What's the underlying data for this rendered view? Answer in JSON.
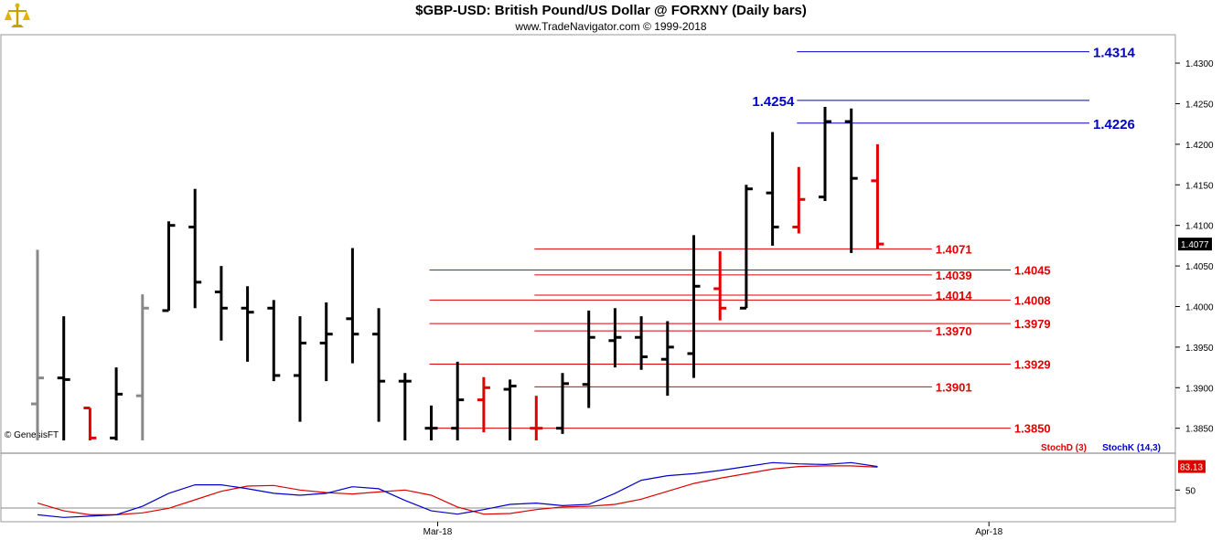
{
  "header": {
    "title": "$GBP-USD:  British Pound/US Dollar @ FORXNY  (Daily bars)",
    "subtitle": "www.TradeNavigator.com © 1999-2018"
  },
  "watermark": "© GenesisFT",
  "colors": {
    "up": "#000000",
    "down": "#e00000",
    "gray": "#888888",
    "support": "#dd0000",
    "resistance": "#0000cc",
    "stochD": "#dd0000",
    "stochK": "#0000cc"
  },
  "chart_data": [
    {
      "type": "ohlc",
      "ylim": [
        1.3835,
        1.4335
      ],
      "yticks": [
        "1.3850",
        "1.3900",
        "1.3950",
        "1.4000",
        "1.4050",
        "1.4100",
        "1.4150",
        "1.4200",
        "1.4250",
        "1.4300"
      ],
      "last_price": "1.4077",
      "xticks": [
        {
          "index": 15,
          "label": "Mar-18"
        },
        {
          "index": 36,
          "label": "Apr-18"
        }
      ],
      "bars": [
        {
          "o": 1.388,
          "h": 1.407,
          "l": 1.3835,
          "c": 1.3912,
          "color": "gray"
        },
        {
          "o": 1.3912,
          "h": 1.3988,
          "l": 1.3835,
          "c": 1.391,
          "color": "black"
        },
        {
          "o": 1.3875,
          "h": 1.3875,
          "l": 1.3835,
          "c": 1.3838,
          "color": "red"
        },
        {
          "o": 1.3838,
          "h": 1.3925,
          "l": 1.3835,
          "c": 1.3892,
          "color": "black"
        },
        {
          "o": 1.389,
          "h": 1.4015,
          "l": 1.3835,
          "c": 1.3998,
          "color": "gray"
        },
        {
          "o": 1.3995,
          "h": 1.4105,
          "l": 1.3995,
          "c": 1.41,
          "color": "black"
        },
        {
          "o": 1.4098,
          "h": 1.4145,
          "l": 1.3998,
          "c": 1.403,
          "color": "black"
        },
        {
          "o": 1.4018,
          "h": 1.405,
          "l": 1.3958,
          "c": 1.3998,
          "color": "black"
        },
        {
          "o": 1.3998,
          "h": 1.4025,
          "l": 1.3932,
          "c": 1.3993,
          "color": "black"
        },
        {
          "o": 1.3998,
          "h": 1.4008,
          "l": 1.3908,
          "c": 1.3915,
          "color": "black"
        },
        {
          "o": 1.3915,
          "h": 1.3988,
          "l": 1.3858,
          "c": 1.3955,
          "color": "black"
        },
        {
          "o": 1.3955,
          "h": 1.4005,
          "l": 1.3908,
          "c": 1.3966,
          "color": "black"
        },
        {
          "o": 1.3985,
          "h": 1.4072,
          "l": 1.393,
          "c": 1.3966,
          "color": "black"
        },
        {
          "o": 1.3966,
          "h": 1.3998,
          "l": 1.3858,
          "c": 1.3908,
          "color": "black"
        },
        {
          "o": 1.3908,
          "h": 1.3918,
          "l": 1.3835,
          "c": 1.3908,
          "color": "black"
        },
        {
          "o": 1.385,
          "h": 1.3878,
          "l": 1.3835,
          "c": 1.385,
          "color": "black"
        },
        {
          "o": 1.385,
          "h": 1.3932,
          "l": 1.3835,
          "c": 1.3885,
          "color": "black"
        },
        {
          "o": 1.3885,
          "h": 1.3913,
          "l": 1.3845,
          "c": 1.39,
          "color": "red"
        },
        {
          "o": 1.3898,
          "h": 1.391,
          "l": 1.3835,
          "c": 1.3902,
          "color": "black"
        },
        {
          "o": 1.385,
          "h": 1.389,
          "l": 1.3835,
          "c": 1.385,
          "color": "red"
        },
        {
          "o": 1.385,
          "h": 1.3918,
          "l": 1.3843,
          "c": 1.3905,
          "color": "black"
        },
        {
          "o": 1.3904,
          "h": 1.3995,
          "l": 1.3875,
          "c": 1.3962,
          "color": "black"
        },
        {
          "o": 1.3958,
          "h": 1.3998,
          "l": 1.3925,
          "c": 1.3962,
          "color": "black"
        },
        {
          "o": 1.3962,
          "h": 1.3988,
          "l": 1.3922,
          "c": 1.3938,
          "color": "black"
        },
        {
          "o": 1.3935,
          "h": 1.3982,
          "l": 1.389,
          "c": 1.395,
          "color": "black"
        },
        {
          "o": 1.3942,
          "h": 1.4088,
          "l": 1.3912,
          "c": 1.4025,
          "color": "black"
        },
        {
          "o": 1.4022,
          "h": 1.4068,
          "l": 1.3983,
          "c": 1.3998,
          "color": "red"
        },
        {
          "o": 1.3998,
          "h": 1.415,
          "l": 1.3998,
          "c": 1.4145,
          "color": "black"
        },
        {
          "o": 1.414,
          "h": 1.4215,
          "l": 1.4075,
          "c": 1.4098,
          "color": "black"
        },
        {
          "o": 1.4098,
          "h": 1.4172,
          "l": 1.409,
          "c": 1.4132,
          "color": "red"
        },
        {
          "o": 1.4135,
          "h": 1.4246,
          "l": 1.413,
          "c": 1.4228,
          "color": "black"
        },
        {
          "o": 1.4228,
          "h": 1.4244,
          "l": 1.4066,
          "c": 1.4158,
          "color": "black"
        },
        {
          "o": 1.4155,
          "h": 1.42,
          "l": 1.4071,
          "c": 1.4077,
          "color": "red"
        }
      ],
      "levels": [
        {
          "label": "1.4314",
          "value": 1.4314,
          "from": 29,
          "to": 40,
          "side": "right",
          "color": "blue"
        },
        {
          "label": "1.4254",
          "value": 1.4254,
          "from": 29,
          "to": 40,
          "side": "left",
          "color": "blue"
        },
        {
          "label": "1.4226",
          "value": 1.4226,
          "from": 29,
          "to": 40,
          "side": "right",
          "color": "blue"
        },
        {
          "label": "1.4071",
          "value": 1.4071,
          "from": 19,
          "to": 34,
          "side": "mid",
          "color": "red"
        },
        {
          "label": "1.4045",
          "value": 1.4045,
          "from": 15,
          "to": 37,
          "side": "right",
          "color": "red"
        },
        {
          "label": "1.4039",
          "value": 1.4039,
          "from": 19,
          "to": 34,
          "side": "mid",
          "color": "red"
        },
        {
          "label": "1.4014",
          "value": 1.4014,
          "from": 19,
          "to": 34,
          "side": "mid",
          "color": "red"
        },
        {
          "label": "1.4008",
          "value": 1.4008,
          "from": 15,
          "to": 37,
          "side": "right",
          "color": "red"
        },
        {
          "label": "1.3979",
          "value": 1.3979,
          "from": 15,
          "to": 37,
          "side": "right",
          "color": "red"
        },
        {
          "label": "1.3970",
          "value": 1.397,
          "from": 19,
          "to": 34,
          "side": "mid",
          "color": "red"
        },
        {
          "label": "1.3929",
          "value": 1.3929,
          "from": 15,
          "to": 37,
          "side": "right",
          "color": "red"
        },
        {
          "label": "1.3901",
          "value": 1.3901,
          "from": 19,
          "to": 34,
          "side": "mid",
          "color": "red"
        },
        {
          "label": "1.3850",
          "value": 1.385,
          "from": 15,
          "to": 37,
          "side": "right",
          "color": "red"
        }
      ]
    },
    {
      "type": "line",
      "ylim": [
        0,
        105
      ],
      "yticks": [
        "50"
      ],
      "last_value": "83.13",
      "series": [
        {
          "name": "StochD (3)",
          "color": "red",
          "values": [
            30,
            18,
            12,
            12,
            15,
            22,
            35,
            48,
            56,
            57,
            50,
            46,
            44,
            47,
            50,
            42,
            24,
            13,
            14,
            20,
            24,
            25,
            28,
            36,
            48,
            60,
            68,
            75,
            82,
            86,
            87,
            87,
            85
          ]
        },
        {
          "name": "StochK (14,3)",
          "color": "blue",
          "values": [
            12,
            8,
            10,
            12,
            25,
            45,
            58,
            58,
            52,
            45,
            42,
            45,
            55,
            52,
            34,
            18,
            13,
            20,
            28,
            30,
            26,
            28,
            45,
            65,
            72,
            75,
            80,
            86,
            92,
            90,
            89,
            92,
            86
          ]
        }
      ]
    }
  ]
}
